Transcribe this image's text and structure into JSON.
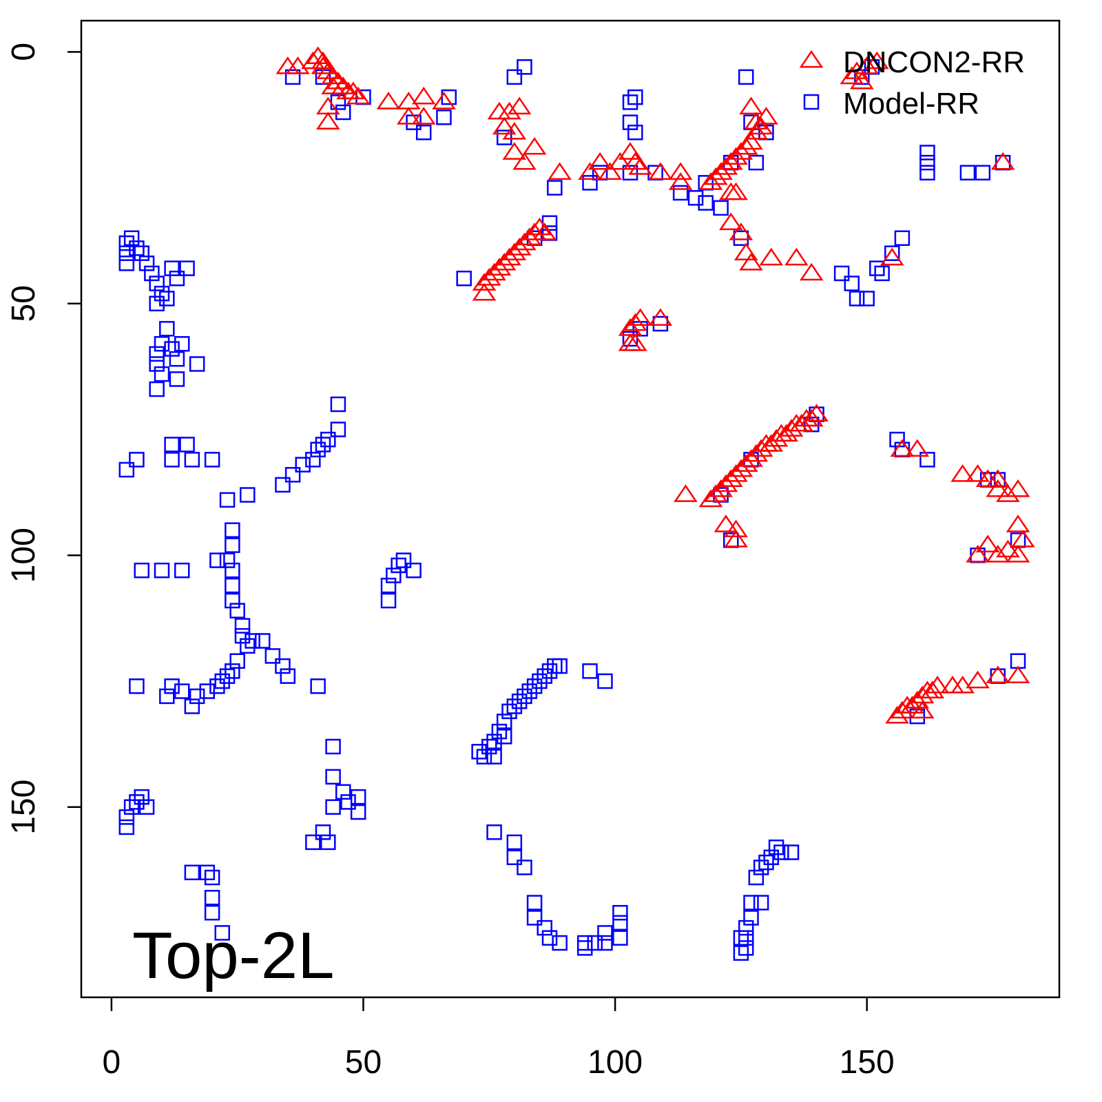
{
  "chart_data": {
    "type": "scatter",
    "annotation": "Top-2L",
    "xlim": [
      -6,
      188.2
    ],
    "ylim": [
      -6.2,
      187.8
    ],
    "y_inverted": true,
    "xticks": [
      0,
      50,
      100,
      150
    ],
    "yticks": [
      0,
      50,
      100,
      150
    ],
    "grid": false,
    "legend": "top-right",
    "series": [
      {
        "name": "Model-RR",
        "color": "#0000ff",
        "marker": "square",
        "x": [
          3,
          3,
          3,
          4,
          5,
          6,
          7,
          8,
          9,
          10,
          11,
          12,
          13,
          15,
          9,
          11,
          10,
          9,
          9,
          10,
          12,
          13,
          14,
          17,
          9,
          13,
          3,
          5,
          12,
          12,
          15,
          16,
          20,
          23,
          27,
          24,
          24,
          23,
          21,
          24,
          24,
          24,
          25,
          26,
          26,
          27,
          28,
          30,
          32,
          34,
          35,
          25,
          24,
          23,
          22,
          21,
          19,
          17,
          16,
          14,
          12,
          11,
          5,
          41,
          6,
          10,
          14,
          34,
          36,
          38,
          40,
          41,
          42,
          43,
          45,
          45,
          3,
          3,
          4,
          5,
          6,
          7,
          16,
          19,
          20,
          20,
          20,
          22,
          40,
          42,
          43,
          44,
          44,
          44,
          46,
          47,
          49,
          49,
          55,
          55,
          56,
          57,
          58,
          60,
          70,
          82,
          80,
          87,
          87,
          88,
          95,
          97,
          103,
          104,
          103,
          104,
          113,
          118,
          116,
          118,
          121,
          125,
          126,
          128,
          145,
          147,
          148,
          150,
          152,
          153,
          155,
          157,
          162,
          162,
          162,
          170,
          173,
          156,
          162,
          157,
          73,
          74,
          75,
          76,
          77,
          78,
          79,
          80,
          81,
          82,
          83,
          84,
          85,
          86,
          87,
          88,
          89,
          76,
          78,
          95,
          98,
          76,
          80,
          80,
          82,
          84,
          84,
          86,
          87,
          89,
          94,
          94,
          96,
          98,
          98,
          101,
          101,
          101,
          126,
          126,
          126,
          125,
          125,
          127,
          127,
          129,
          128,
          129,
          130,
          131,
          132,
          133,
          135,
          139,
          140,
          127,
          121,
          123,
          180,
          172,
          176,
          180,
          160,
          176,
          174,
          177,
          151,
          149,
          36,
          42,
          45,
          50,
          46,
          60,
          62,
          66,
          67,
          78,
          103,
          108,
          84,
          105,
          109,
          103,
          123,
          127,
          130
        ],
        "values": [
          38,
          40,
          42,
          37,
          39,
          40,
          42,
          44,
          46,
          48,
          49,
          43,
          45,
          43,
          50,
          55,
          58,
          60,
          62,
          64,
          59,
          61,
          58,
          62,
          67,
          65,
          83,
          81,
          78,
          81,
          78,
          81,
          81,
          89,
          88,
          95,
          98,
          101,
          101,
          103,
          106,
          109,
          111,
          114,
          116,
          118,
          117,
          117,
          120,
          122,
          124,
          121,
          123,
          124,
          125,
          126,
          127,
          128,
          130,
          127,
          126,
          128,
          126,
          126,
          103,
          103,
          103,
          86,
          84,
          82,
          81,
          79,
          78,
          77,
          75,
          70,
          152,
          154,
          150,
          149,
          148,
          150,
          163,
          163,
          164,
          168,
          171,
          175,
          157,
          155,
          157,
          150,
          144,
          138,
          147,
          149,
          148,
          151,
          106,
          109,
          104,
          102,
          101,
          103,
          45,
          3,
          5,
          36,
          34,
          27,
          26,
          24,
          10,
          9,
          14,
          16,
          28,
          26,
          29,
          30,
          31,
          37,
          5,
          22,
          44,
          46,
          49,
          49,
          43,
          44,
          40,
          37,
          20,
          22,
          24,
          24,
          24,
          77,
          81,
          79,
          139,
          140,
          138,
          137,
          135,
          133,
          131,
          130,
          129,
          128,
          127,
          126,
          125,
          124,
          123,
          122,
          122,
          140,
          136,
          123,
          125,
          155,
          157,
          160,
          162,
          169,
          172,
          174,
          176,
          177,
          178,
          177,
          177,
          177,
          175,
          176,
          173,
          171,
          174,
          176,
          178,
          176,
          179,
          169,
          172,
          169,
          164,
          162,
          161,
          160,
          158,
          159,
          159,
          74,
          72,
          81,
          88,
          97,
          97,
          100,
          85,
          121,
          132,
          124,
          85,
          22,
          3,
          5,
          5,
          5,
          10,
          9,
          12,
          14,
          16,
          13,
          9,
          17,
          24,
          24,
          37,
          55,
          54,
          57,
          22,
          14,
          16
        ]
      },
      {
        "name": "DNCON2-RR",
        "color": "#ff0000",
        "marker": "triangle",
        "x": [
          35,
          37,
          40,
          41,
          42,
          42,
          43,
          44,
          45,
          46,
          47,
          48,
          49,
          43,
          43,
          44,
          55,
          59,
          59,
          62,
          62,
          66,
          77,
          78,
          79,
          80,
          81,
          80,
          82,
          84,
          89,
          95,
          97,
          99,
          101,
          103,
          104,
          105,
          109,
          113,
          113,
          119,
          120,
          121,
          122,
          123,
          124,
          125,
          126,
          127,
          128,
          129,
          130,
          127,
          128,
          123,
          124,
          123,
          125,
          126,
          127,
          131,
          136,
          139,
          155,
          177,
          147,
          148,
          150,
          152,
          149,
          74,
          75,
          76,
          77,
          78,
          79,
          80,
          81,
          82,
          83,
          84,
          85,
          86,
          74,
          103,
          104,
          105,
          109,
          103,
          104,
          119,
          120,
          121,
          122,
          123,
          124,
          125,
          126,
          127,
          128,
          129,
          130,
          131,
          132,
          133,
          134,
          135,
          136,
          137,
          138,
          139,
          140,
          114,
          122,
          124,
          124,
          157,
          160,
          169,
          172,
          174,
          176,
          176,
          178,
          180,
          180,
          181,
          178,
          180,
          172,
          176,
          174,
          156,
          157,
          158,
          159,
          160,
          161,
          162,
          163,
          164,
          167,
          169,
          172,
          176,
          180,
          161
        ],
        "values": [
          3,
          3,
          2,
          1,
          2,
          3,
          4,
          5,
          6,
          7,
          8,
          8,
          9,
          11,
          14,
          7,
          10,
          10,
          13,
          9,
          13,
          10,
          12,
          15,
          12,
          16,
          11,
          20,
          22,
          19,
          24,
          24,
          22,
          24,
          22,
          20,
          22,
          23,
          24,
          24,
          26,
          26,
          25,
          24,
          23,
          22,
          21,
          20,
          19,
          18,
          16,
          15,
          13,
          11,
          14,
          28,
          28,
          34,
          36,
          40,
          42,
          41,
          41,
          44,
          41,
          22,
          5,
          4,
          3,
          2,
          6,
          46,
          45,
          44,
          43,
          42,
          41,
          40,
          39,
          38,
          37,
          36,
          35,
          36,
          48,
          55,
          54,
          53,
          53,
          58,
          58,
          89,
          88,
          87,
          86,
          85,
          84,
          83,
          82,
          81,
          80,
          79,
          78,
          78,
          77,
          76,
          76,
          75,
          74,
          74,
          73,
          73,
          72,
          88,
          94,
          95,
          97,
          79,
          79,
          84,
          84,
          85,
          85,
          87,
          88,
          87,
          94,
          97,
          99,
          100,
          100,
          100,
          98,
          132,
          131,
          130,
          130,
          129,
          128,
          127,
          127,
          126,
          126,
          126,
          125,
          124,
          124,
          131
        ]
      }
    ]
  }
}
